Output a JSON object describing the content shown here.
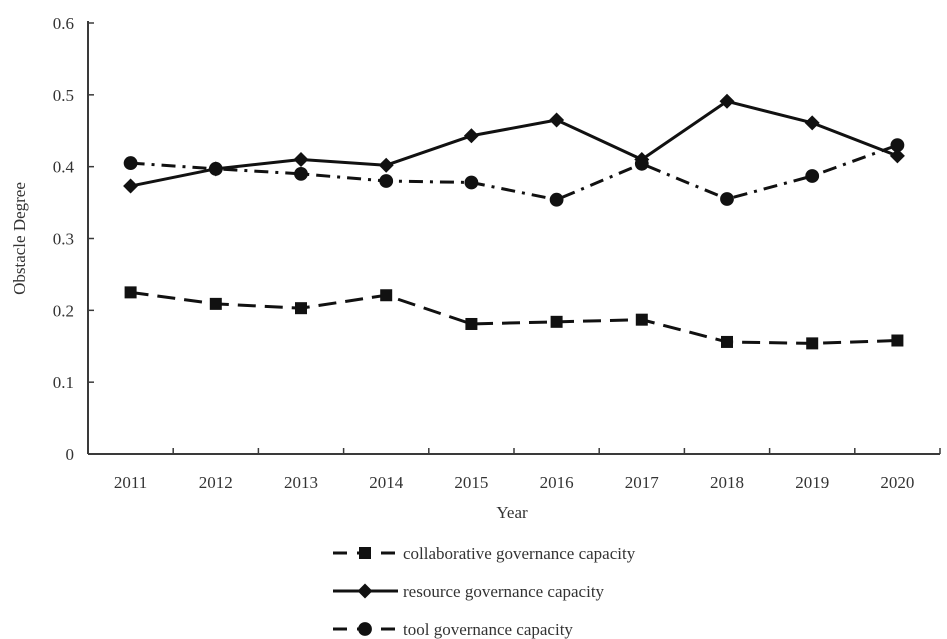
{
  "chart_data": {
    "type": "line",
    "title": "",
    "xlabel": "Year",
    "ylabel": "Obstacle Degree",
    "categories": [
      "2011",
      "2012",
      "2013",
      "2014",
      "2015",
      "2016",
      "2017",
      "2018",
      "2019",
      "2020"
    ],
    "ylim": [
      0,
      0.6
    ],
    "yticks": [
      "0",
      "0.1",
      "0.2",
      "0.3",
      "0.4",
      "0.5",
      "0.6"
    ],
    "grid": false,
    "legend_position": "bottom",
    "series": [
      {
        "name": "collaborative governance capacity",
        "marker": "square",
        "line_style": "dashed",
        "color": "#111111",
        "values": [
          0.225,
          0.209,
          0.203,
          0.221,
          0.181,
          0.184,
          0.187,
          0.156,
          0.154,
          0.158
        ]
      },
      {
        "name": "resource governance capacity",
        "marker": "diamond",
        "line_style": "solid",
        "color": "#111111",
        "values": [
          0.373,
          0.397,
          0.41,
          0.402,
          0.443,
          0.465,
          0.41,
          0.491,
          0.461,
          0.415
        ]
      },
      {
        "name": "tool governance capacity",
        "marker": "circle",
        "line_style": "dash-dot",
        "color": "#111111",
        "values": [
          0.405,
          0.397,
          0.39,
          0.38,
          0.378,
          0.354,
          0.404,
          0.355,
          0.387,
          0.43
        ]
      }
    ]
  }
}
